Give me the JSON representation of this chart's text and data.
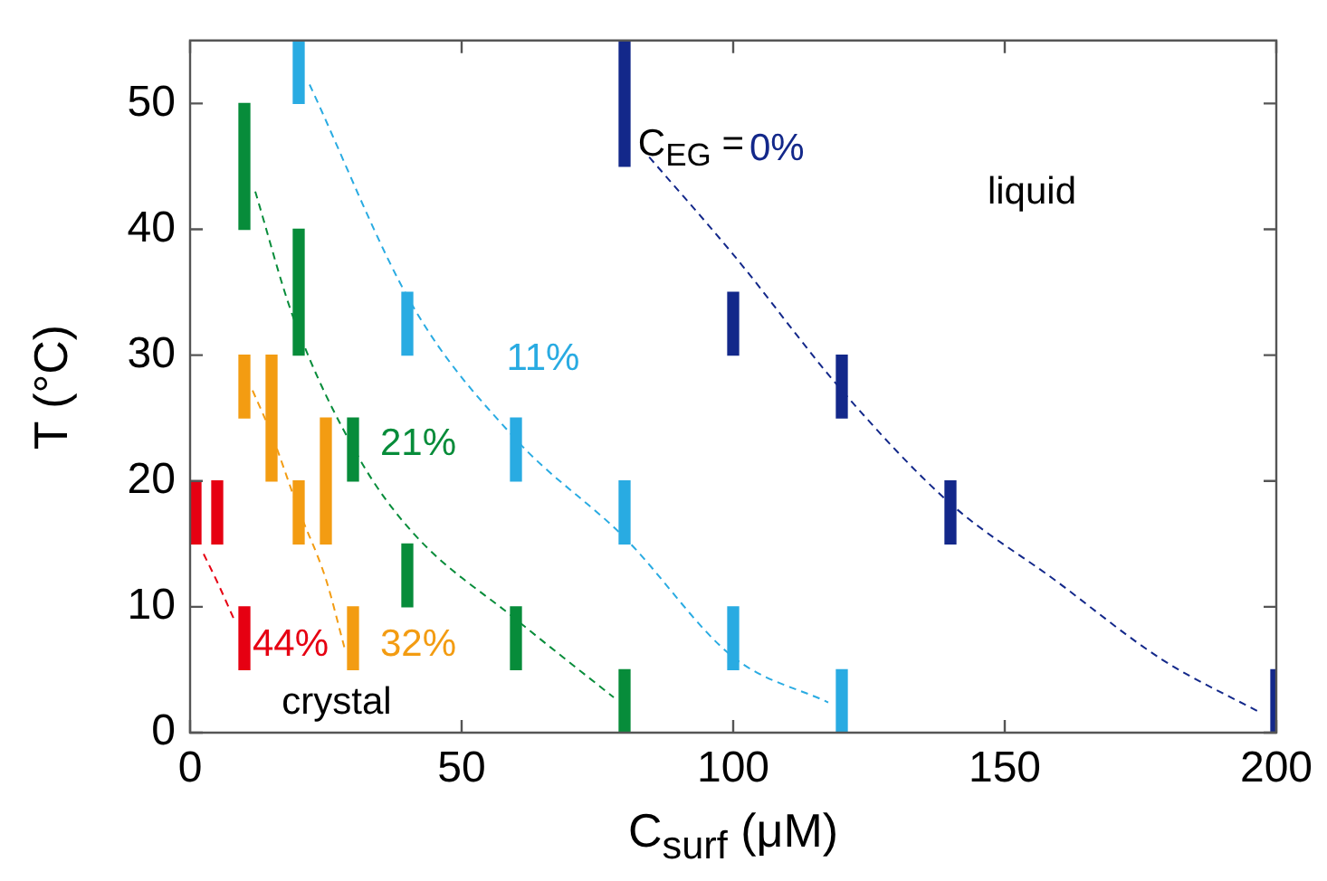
{
  "chart_data": {
    "type": "bar",
    "xlabel": "C$_{surf}$ (μM)",
    "ylabel": "T (°C)",
    "xlim": [
      0,
      200
    ],
    "ylim": [
      0,
      55
    ],
    "xticks": [
      0,
      50,
      100,
      150,
      200
    ],
    "yticks": [
      0,
      10,
      20,
      30,
      40,
      50
    ],
    "grid": false,
    "legend": false,
    "annotations": [
      "C$_{EG}$ =",
      "liquid",
      "crystal"
    ],
    "series": [
      {
        "name": "0%",
        "color": "#13288a",
        "x": [
          80,
          100,
          120,
          140,
          200
        ],
        "base": [
          45,
          30,
          25,
          15,
          0
        ],
        "values": [
          10,
          5,
          5,
          5,
          5
        ]
      },
      {
        "name": "11%",
        "color": "#29abe2",
        "x": [
          20,
          40,
          60,
          80,
          100,
          120
        ],
        "base": [
          50,
          30,
          20,
          15,
          5,
          0
        ],
        "values": [
          5,
          5,
          5,
          5,
          5,
          5
        ]
      },
      {
        "name": "21%",
        "color": "#078c3a",
        "x": [
          10,
          20,
          30,
          40,
          60,
          80
        ],
        "base": [
          40,
          30,
          20,
          10,
          5,
          0
        ],
        "values": [
          10,
          10,
          5,
          5,
          5,
          5
        ]
      },
      {
        "name": "32%",
        "color": "#f39c12",
        "x": [
          10,
          15,
          20,
          25,
          30
        ],
        "base": [
          25,
          20,
          15,
          15,
          5
        ],
        "values": [
          5,
          10,
          5,
          10,
          5
        ]
      },
      {
        "name": "44%",
        "color": "#e60012",
        "x": [
          1,
          5,
          10
        ],
        "base": [
          15,
          15,
          5
        ],
        "values": [
          5,
          5,
          5
        ]
      },
      {
        "type": "line",
        "color": "#13288a",
        "line_style": "dashed",
        "marker": "none",
        "x": [
          83,
          100,
          120,
          140,
          159,
          179,
          197
        ],
        "values": [
          46.5,
          38,
          27.2,
          18.2,
          12.2,
          5.8,
          1.6
        ]
      },
      {
        "type": "line",
        "color": "#29abe2",
        "line_style": "dashed",
        "marker": "none",
        "x": [
          22,
          41,
          60,
          80,
          100,
          117.5
        ],
        "values": [
          51.5,
          33.9,
          23.3,
          15.5,
          6,
          2.4
        ]
      },
      {
        "type": "line",
        "color": "#078c3a",
        "line_style": "dashed",
        "marker": "none",
        "x": [
          12,
          19,
          31,
          41,
          60,
          78
        ],
        "values": [
          43,
          33,
          21.9,
          15.9,
          9,
          2.8
        ]
      },
      {
        "type": "line",
        "color": "#f39c12",
        "line_style": "dashed",
        "marker": "none",
        "x": [
          11.5,
          15,
          20,
          25,
          28.4
        ],
        "values": [
          27.2,
          23.7,
          17.7,
          12.2,
          6.8
        ]
      },
      {
        "type": "line",
        "color": "#e60012",
        "line_style": "dashed",
        "marker": "none",
        "x": [
          2.5,
          5.3,
          8.3
        ],
        "values": [
          14.2,
          11.7,
          8.8
        ]
      }
    ]
  }
}
